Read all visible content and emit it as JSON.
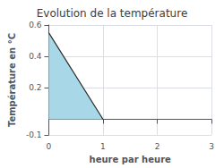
{
  "chart_data": {
    "type": "area",
    "title": "Evolution de la température",
    "xlabel": "heure par heure",
    "ylabel": "Température en °C",
    "series": [
      {
        "type": "area",
        "color": "#a8d8e8",
        "x": [
          0,
          1,
          0
        ],
        "values": [
          0.55,
          0,
          0
        ]
      },
      {
        "type": "line",
        "color": "#222222",
        "x": [
          0,
          1
        ],
        "values": [
          0.55,
          0
        ]
      }
    ],
    "xlim": [
      0,
      3
    ],
    "ylim": [
      -0.1,
      0.6
    ],
    "xticks": [
      0,
      1,
      2,
      3
    ],
    "yticks": [
      -0.1,
      0.2,
      0.4,
      0.6
    ],
    "grid": true
  }
}
